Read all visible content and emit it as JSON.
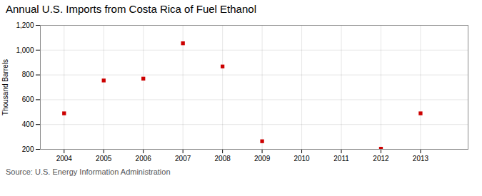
{
  "chart_data": {
    "type": "scatter",
    "title": "Annual U.S. Imports from Costa Rica of Fuel Ethanol",
    "ylabel": "Thousand Barrels",
    "source": "Source: U.S. Energy Information Administration",
    "x": [
      2004,
      2005,
      2006,
      2007,
      2008,
      2009,
      2012,
      2013
    ],
    "values": [
      490,
      755,
      770,
      1055,
      868,
      265,
      205,
      490
    ],
    "xlim": [
      2003.4,
      2014.2
    ],
    "ylim": [
      200,
      1200
    ],
    "xticks": [
      2004,
      2005,
      2006,
      2007,
      2008,
      2009,
      2010,
      2011,
      2012,
      2013
    ],
    "yticks": [
      200,
      400,
      600,
      800,
      {
        "value": 1000,
        "label": "1,000"
      },
      {
        "value": 1200,
        "label": "1,200"
      }
    ],
    "grid": true,
    "color": "#cc0000",
    "marker": "square"
  }
}
